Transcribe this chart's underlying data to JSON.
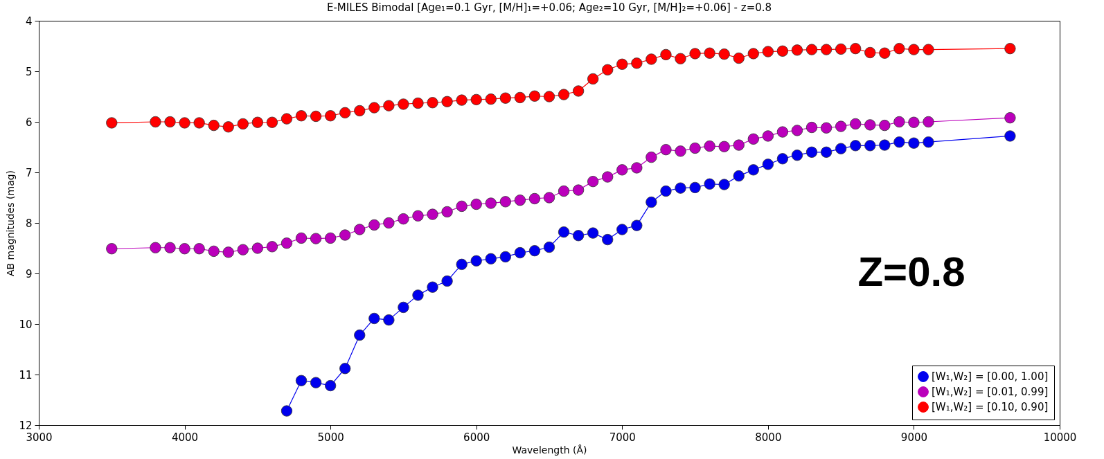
{
  "chart_data": {
    "type": "line",
    "title": "E-MILES Bimodal [Age₁=0.1 Gyr, [M/H]₁=+0.06; Age₂=10 Gyr, [M/H]₂=+0.06]  -  z=0.8",
    "xlabel": "Wavelength (Å)",
    "ylabel": "AB magnitudes (mag)",
    "annotations": [
      "Z=0.8"
    ],
    "xlim": [
      3000,
      10000
    ],
    "xticks": [
      3000,
      4000,
      5000,
      6000,
      7000,
      8000,
      9000,
      10000
    ],
    "ylim": [
      12,
      4
    ],
    "yticks": [
      4,
      5,
      6,
      7,
      8,
      9,
      10,
      11,
      12
    ],
    "grid": false,
    "legend": "bottom right",
    "marker": "circle",
    "line_style": "solid",
    "series": [
      {
        "name": "[W₁,W₂] = [0.00, 1.00]",
        "color": "#0000ee",
        "x": [
          4700,
          4800,
          4900,
          5000,
          5100,
          5200,
          5300,
          5400,
          5500,
          5600,
          5700,
          5800,
          5900,
          6000,
          6100,
          6200,
          6300,
          6400,
          6500,
          6600,
          6700,
          6800,
          6900,
          7000,
          7100,
          7200,
          7300,
          7400,
          7500,
          7600,
          7700,
          7800,
          7900,
          8000,
          8100,
          8200,
          8300,
          8400,
          8500,
          8600,
          8700,
          8800,
          8900,
          9000,
          9100,
          9660
        ],
        "values": [
          11.72,
          11.12,
          11.16,
          11.22,
          10.88,
          10.22,
          9.89,
          9.92,
          9.67,
          9.43,
          9.27,
          9.15,
          8.82,
          8.75,
          8.71,
          8.67,
          8.59,
          8.55,
          8.48,
          8.18,
          8.25,
          8.2,
          8.33,
          8.13,
          8.05,
          7.59,
          7.37,
          7.31,
          7.3,
          7.23,
          7.24,
          7.07,
          6.95,
          6.84,
          6.73,
          6.66,
          6.6,
          6.6,
          6.53,
          6.47,
          6.47,
          6.46,
          6.4,
          6.42,
          6.4,
          6.28
        ]
      },
      {
        "name": "[W₁,W₂] = [0.01, 0.99]",
        "color": "#bb00bb",
        "x": [
          3500,
          3800,
          3900,
          4000,
          4100,
          4200,
          4300,
          4400,
          4500,
          4600,
          4700,
          4800,
          4900,
          5000,
          5100,
          5200,
          5300,
          5400,
          5500,
          5600,
          5700,
          5800,
          5900,
          6000,
          6100,
          6200,
          6300,
          6400,
          6500,
          6600,
          6700,
          6800,
          6900,
          7000,
          7100,
          7200,
          7300,
          7400,
          7500,
          7600,
          7700,
          7800,
          7900,
          8000,
          8100,
          8200,
          8300,
          8400,
          8500,
          8600,
          8700,
          8800,
          8900,
          9000,
          9100,
          9660
        ],
        "values": [
          8.51,
          8.49,
          8.49,
          8.51,
          8.51,
          8.56,
          8.58,
          8.53,
          8.5,
          8.47,
          8.4,
          8.3,
          8.31,
          8.3,
          8.24,
          8.13,
          8.04,
          8.0,
          7.92,
          7.86,
          7.83,
          7.78,
          7.67,
          7.63,
          7.61,
          7.58,
          7.55,
          7.52,
          7.5,
          7.37,
          7.35,
          7.18,
          7.09,
          6.95,
          6.91,
          6.7,
          6.55,
          6.58,
          6.52,
          6.48,
          6.49,
          6.46,
          6.34,
          6.28,
          6.2,
          6.17,
          6.11,
          6.12,
          6.09,
          6.04,
          6.06,
          6.07,
          6.0,
          6.01,
          6.0,
          5.92
        ]
      },
      {
        "name": "[W₁,W₂] = [0.10, 0.90]",
        "color": "#ff0000",
        "x": [
          3500,
          3800,
          3900,
          4000,
          4100,
          4200,
          4300,
          4400,
          4500,
          4600,
          4700,
          4800,
          4900,
          5000,
          5100,
          5200,
          5300,
          5400,
          5500,
          5600,
          5700,
          5800,
          5900,
          6000,
          6100,
          6200,
          6300,
          6400,
          6500,
          6600,
          6700,
          6800,
          6900,
          7000,
          7100,
          7200,
          7300,
          7400,
          7500,
          7600,
          7700,
          7800,
          7900,
          8000,
          8100,
          8200,
          8300,
          8400,
          8500,
          8600,
          8700,
          8800,
          8900,
          9000,
          9100,
          9660
        ],
        "values": [
          6.02,
          6.0,
          6.0,
          6.02,
          6.02,
          6.07,
          6.1,
          6.04,
          6.01,
          6.01,
          5.94,
          5.88,
          5.89,
          5.88,
          5.82,
          5.78,
          5.72,
          5.68,
          5.65,
          5.63,
          5.62,
          5.6,
          5.57,
          5.56,
          5.55,
          5.53,
          5.52,
          5.49,
          5.5,
          5.46,
          5.39,
          5.15,
          4.97,
          4.86,
          4.84,
          4.76,
          4.67,
          4.75,
          4.65,
          4.64,
          4.66,
          4.74,
          4.65,
          4.61,
          4.6,
          4.58,
          4.57,
          4.57,
          4.56,
          4.55,
          4.63,
          4.64,
          4.55,
          4.57,
          4.57,
          4.55
        ]
      }
    ]
  }
}
